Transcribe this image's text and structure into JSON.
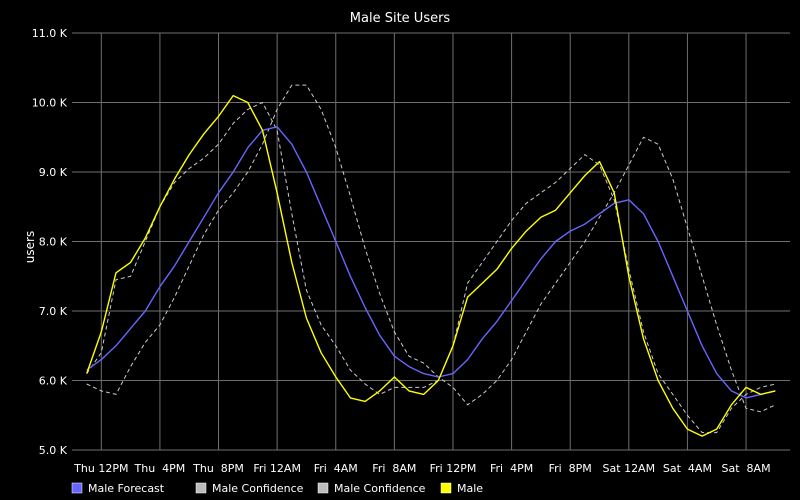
{
  "chart_data": {
    "type": "line",
    "title": "Male Site Users",
    "ylabel": "users",
    "xlabel": "",
    "ylim": [
      5000,
      11000
    ],
    "y_ticks": [
      {
        "value": 5000,
        "label": "5.0 K"
      },
      {
        "value": 6000,
        "label": "6.0 K"
      },
      {
        "value": 7000,
        "label": "7.0 K"
      },
      {
        "value": 8000,
        "label": "8.0 K"
      },
      {
        "value": 9000,
        "label": "9.0 K"
      },
      {
        "value": 10000,
        "label": "10.0 K"
      },
      {
        "value": 11000,
        "label": "11.0 K"
      }
    ],
    "x_range": [
      "Thu 10AM",
      "Sat 11AM"
    ],
    "x": [
      "Thu 11AM",
      "Thu 12PM",
      "Thu 1PM",
      "Thu 2PM",
      "Thu 3PM",
      "Thu 4PM",
      "Thu 5PM",
      "Thu 6PM",
      "Thu 7PM",
      "Thu 8PM",
      "Thu 9PM",
      "Thu 10PM",
      "Thu 11PM",
      "Fri 12AM",
      "Fri 1AM",
      "Fri 2AM",
      "Fri 3AM",
      "Fri 4AM",
      "Fri 5AM",
      "Fri 6AM",
      "Fri 7AM",
      "Fri 8AM",
      "Fri 9AM",
      "Fri 10AM",
      "Fri 11AM",
      "Fri 12PM",
      "Fri 1PM",
      "Fri 2PM",
      "Fri 3PM",
      "Fri 4PM",
      "Fri 5PM",
      "Fri 6PM",
      "Fri 7PM",
      "Fri 8PM",
      "Fri 9PM",
      "Fri 10PM",
      "Fri 11PM",
      "Sat 12AM",
      "Sat 1AM",
      "Sat 2AM",
      "Sat 3AM",
      "Sat 4AM",
      "Sat 5AM",
      "Sat 6AM",
      "Sat 7AM",
      "Sat 8AM",
      "Sat 9AM",
      "Sat 10AM"
    ],
    "x_tick_labels": [
      {
        "x": "Thu 12PM",
        "label": "Thu 12PM"
      },
      {
        "x": "Thu 4PM",
        "label": "Thu  4PM"
      },
      {
        "x": "Thu 8PM",
        "label": "Thu  8PM"
      },
      {
        "x": "Fri 12AM",
        "label": "Fri 12AM"
      },
      {
        "x": "Fri 4AM",
        "label": "Fri  4AM"
      },
      {
        "x": "Fri 8AM",
        "label": "Fri  8AM"
      },
      {
        "x": "Fri 12PM",
        "label": "Fri 12PM"
      },
      {
        "x": "Fri 4PM",
        "label": "Fri  4PM"
      },
      {
        "x": "Fri 8PM",
        "label": "Fri  8PM"
      },
      {
        "x": "Sat 12AM",
        "label": "Sat 12AM"
      },
      {
        "x": "Sat 4AM",
        "label": "Sat  4AM"
      },
      {
        "x": "Sat 8AM",
        "label": "Sat  8AM"
      }
    ],
    "grid": true,
    "legend_position": "bottom-left",
    "series": [
      {
        "name": "Male Forecast",
        "color": "#6666ff",
        "style": "solid",
        "values": [
          6150,
          6300,
          6500,
          6750,
          7000,
          7350,
          7650,
          8000,
          8350,
          8700,
          9000,
          9350,
          9600,
          9650,
          9400,
          9000,
          8500,
          8000,
          7500,
          7050,
          6650,
          6350,
          6200,
          6100,
          6050,
          6100,
          6300,
          6600,
          6850,
          7150,
          7450,
          7750,
          8000,
          8150,
          8250,
          8400,
          8550,
          8600,
          8400,
          8000,
          7500,
          7000,
          6500,
          6100,
          5850,
          5750,
          5800,
          5850
        ]
      },
      {
        "name": "Male Confidence",
        "color": "#cccccc",
        "style": "dashed",
        "values": [
          5950,
          5850,
          5800,
          6200,
          6550,
          6800,
          7200,
          7650,
          8100,
          8450,
          8700,
          9000,
          9400,
          9900,
          10250,
          10250,
          9900,
          9350,
          8650,
          7900,
          7250,
          6700,
          6350,
          6250,
          6050,
          5900,
          5650,
          5800,
          6000,
          6300,
          6700,
          7100,
          7400,
          7700,
          8000,
          8350,
          8700,
          9100,
          9500,
          9400,
          8900,
          8200,
          7500,
          6800,
          6150,
          5600,
          5550,
          5650
        ]
      },
      {
        "name": "Male Confidence",
        "color": "#cccccc",
        "style": "dashed",
        "values": [
          6100,
          6400,
          7450,
          7500,
          8000,
          8500,
          8850,
          9050,
          9200,
          9400,
          9700,
          9900,
          10000,
          9600,
          8400,
          7300,
          6800,
          6500,
          6150,
          5950,
          5800,
          5900,
          5900,
          5900,
          6000,
          6500,
          7400,
          7700,
          8000,
          8300,
          8550,
          8700,
          8850,
          9050,
          9250,
          9100,
          8600,
          7600,
          6700,
          6100,
          5800,
          5500,
          5250,
          5250,
          5600,
          5800,
          5900,
          5950
        ]
      },
      {
        "name": "Male",
        "color": "#ffff00",
        "style": "solid",
        "values": [
          6100,
          6700,
          7550,
          7700,
          8050,
          8500,
          8900,
          9250,
          9550,
          9800,
          10100,
          10000,
          9600,
          8700,
          7700,
          6900,
          6400,
          6050,
          5750,
          5700,
          5850,
          6050,
          5850,
          5800,
          6000,
          6500,
          7200,
          7400,
          7600,
          7900,
          8150,
          8350,
          8450,
          8700,
          8950,
          9150,
          8700,
          7500,
          6600,
          6000,
          5600,
          5300,
          5200,
          5300,
          5650,
          5900,
          5800,
          5850
        ]
      }
    ]
  }
}
